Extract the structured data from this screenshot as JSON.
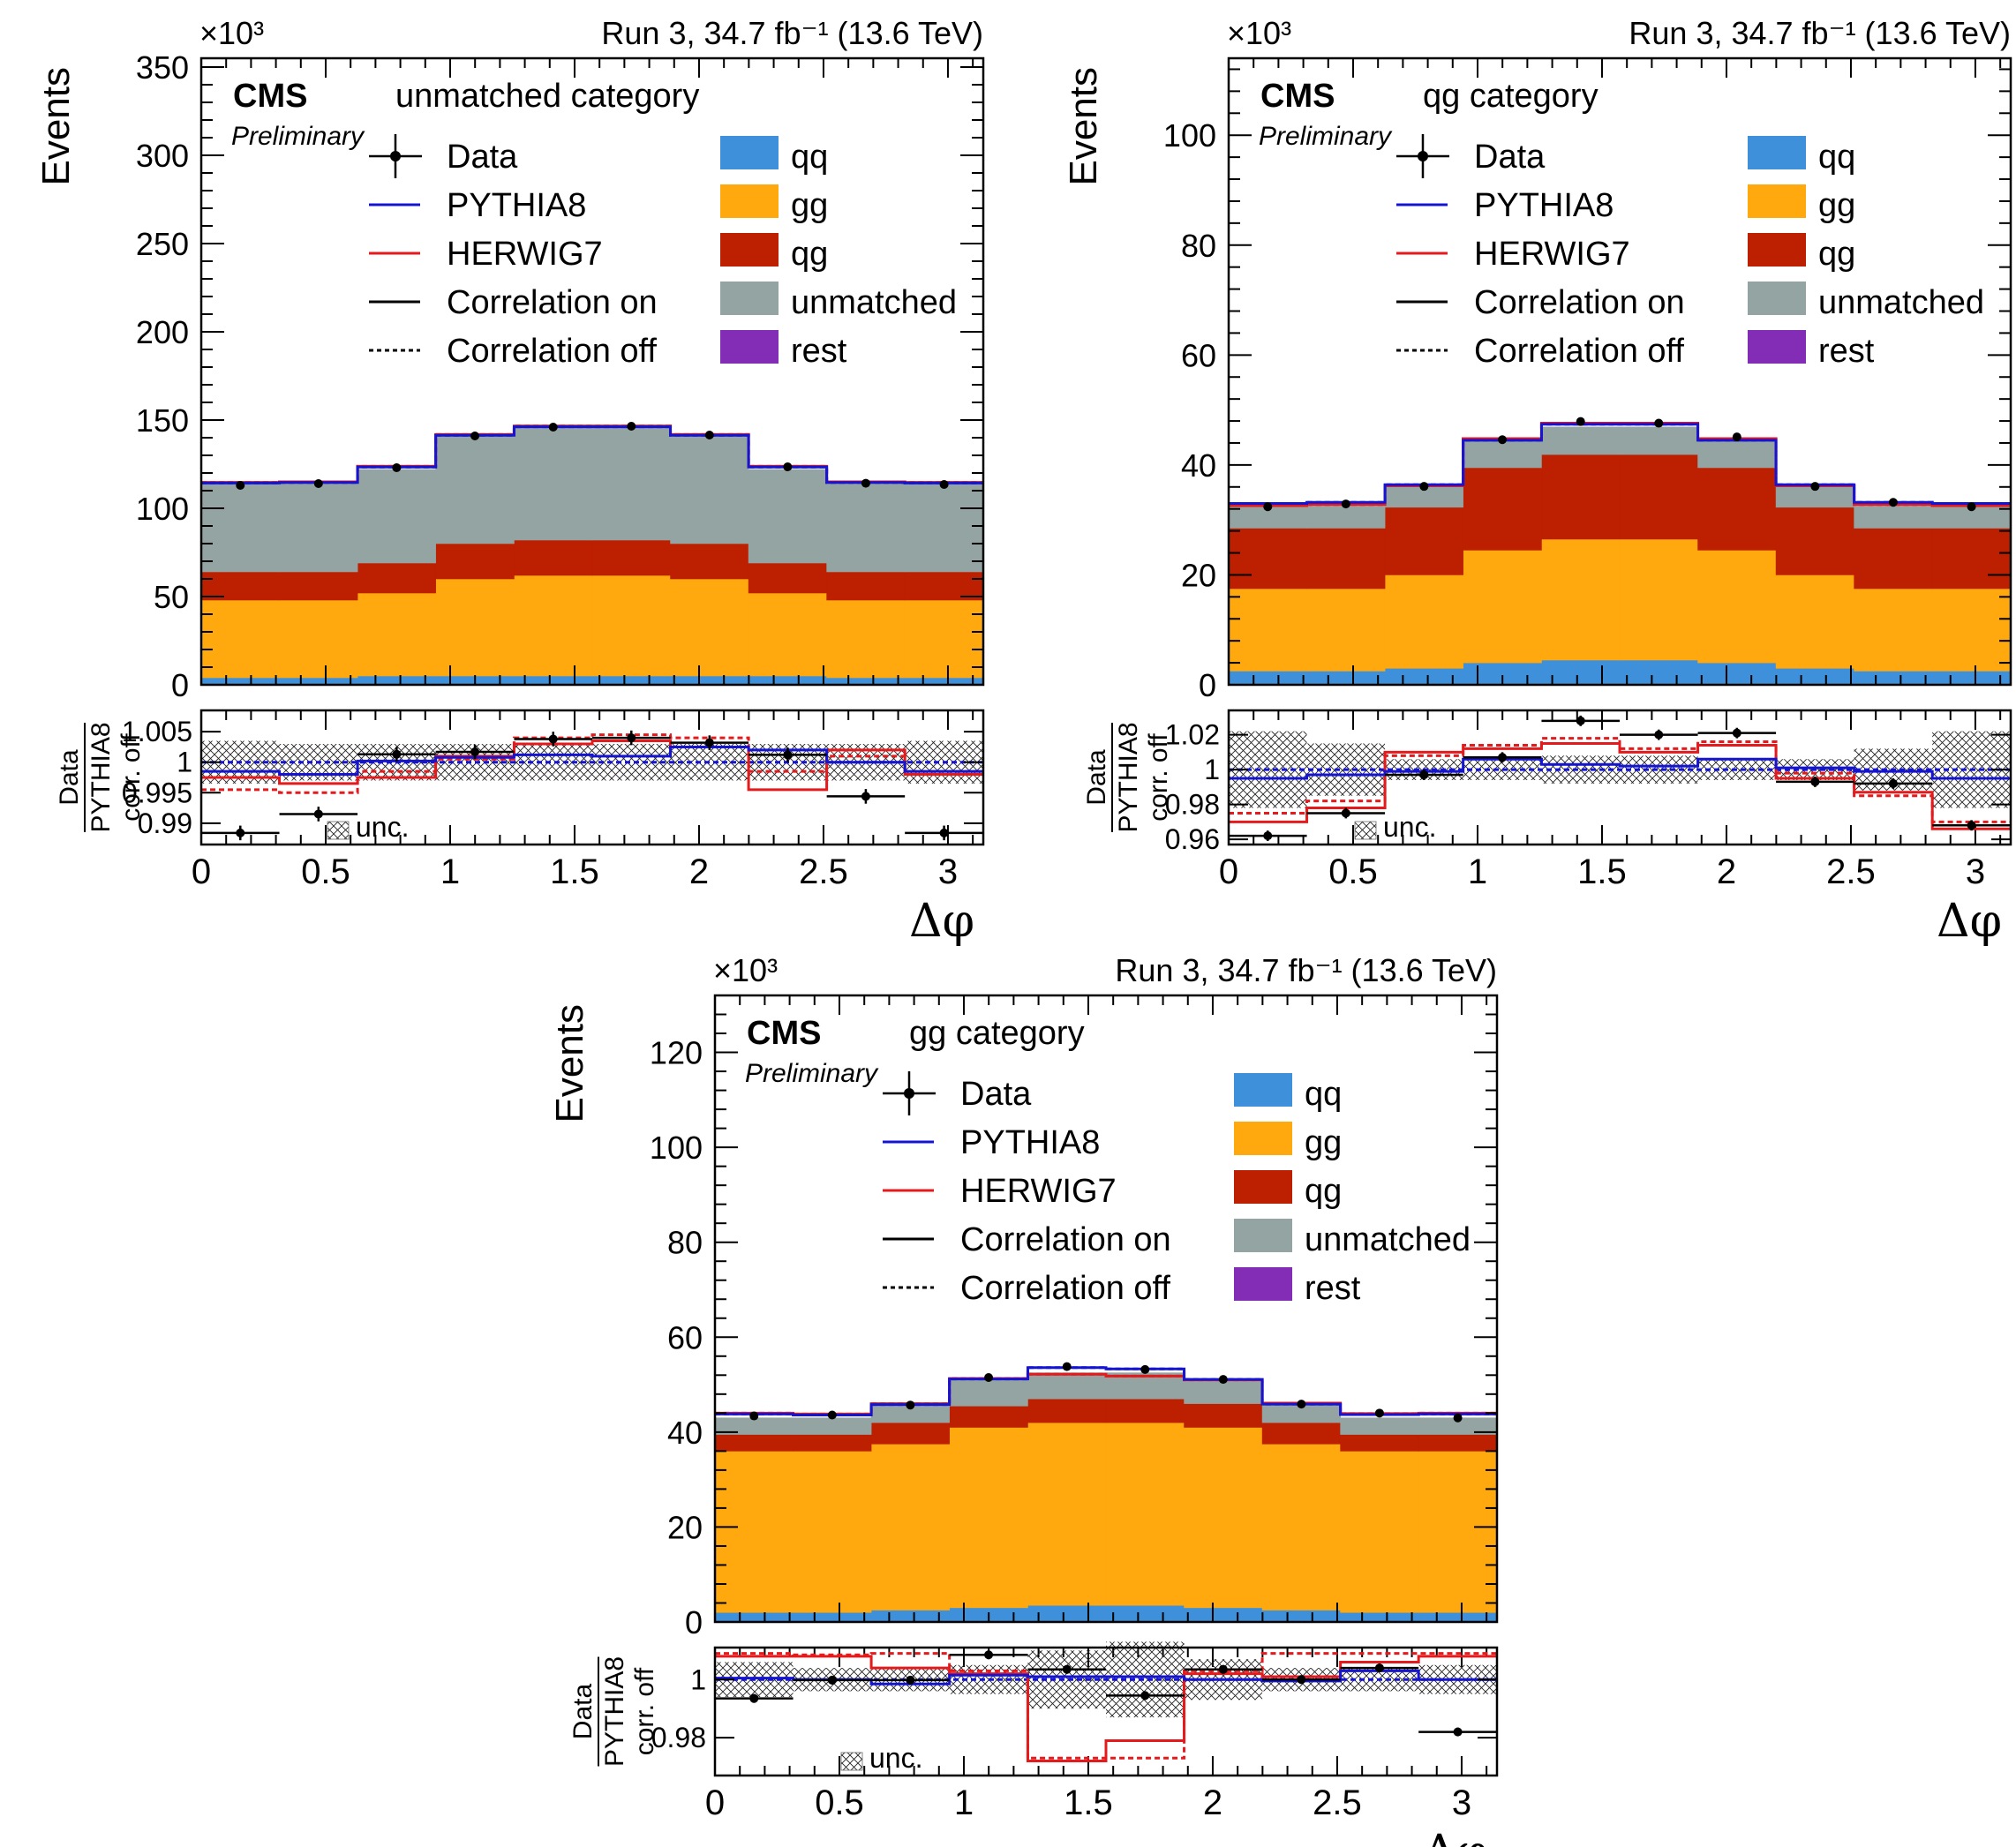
{
  "figure": {
    "lumi_label": "Run 3, 34.7 fb⁻¹ (13.6 TeV)",
    "cms_label": "CMS",
    "preliminary_label": "Preliminary",
    "exponent_label": "×10³",
    "ylabel_main": "Events",
    "ratio_ylabel_top": "Data",
    "ratio_ylabel_mid": "PYTHIA8",
    "ratio_ylabel_bottom": "corr. off",
    "xlabel": "Δφ",
    "unc_label": "unc.",
    "legend_left": [
      "Data",
      "PYTHIA8",
      "HERWIG7",
      "Correlation on",
      "Correlation off"
    ],
    "legend_right": [
      "qq",
      "gg",
      "qg",
      "unmatched",
      "rest"
    ],
    "colors": {
      "qq": "#3f90da",
      "gg": "#ffa90e",
      "qg": "#bd1f01",
      "unmatched": "#94a4a2",
      "rest": "#832db6",
      "pythia": "#1414d2",
      "herwig": "#e41a1c",
      "data": "#000000"
    }
  },
  "chart_data": [
    {
      "type": "bar",
      "panel": "top-left",
      "category_label": "unmatched category",
      "title": "Run 3, 34.7 fb⁻¹ (13.6 TeV)",
      "xlabel": "Δφ",
      "ylabel": "Events",
      "y_scale_note": "×10³",
      "x_bin_edges": [
        0,
        0.314,
        0.628,
        0.942,
        1.257,
        1.571,
        1.885,
        2.199,
        2.513,
        2.827,
        3.142
      ],
      "xlim": [
        0,
        3.142
      ],
      "xticks": [
        0,
        0.5,
        1,
        1.5,
        2,
        2.5,
        3
      ],
      "ylim": [
        0,
        355
      ],
      "yticks": [
        0,
        50,
        100,
        150,
        200,
        250,
        300,
        350
      ],
      "stack_order": [
        "qq",
        "gg",
        "qg",
        "unmatched"
      ],
      "series": [
        {
          "name": "qq",
          "values": [
            4,
            4,
            5,
            5,
            5,
            5,
            5,
            5,
            4,
            4
          ]
        },
        {
          "name": "gg",
          "values": [
            44,
            44,
            47,
            55,
            57,
            57,
            55,
            47,
            44,
            44
          ]
        },
        {
          "name": "qg",
          "values": [
            16,
            16,
            17,
            20,
            20,
            20,
            20,
            17,
            16,
            16
          ]
        },
        {
          "name": "unmatched",
          "values": [
            50,
            50,
            53,
            61,
            64,
            64,
            61,
            53,
            50,
            50
          ]
        }
      ],
      "pythia_total": [
        114.3,
        114.6,
        123.4,
        141.4,
        146.2,
        146.2,
        141.4,
        123.4,
        114.6,
        114.3
      ],
      "herwig_total": [
        114.7,
        115.0,
        123.8,
        141.8,
        146.6,
        146.6,
        141.8,
        123.8,
        115.0,
        114.7
      ],
      "data": [
        113,
        114,
        123,
        141,
        146,
        146.5,
        141.5,
        123.5,
        114.2,
        113.5
      ],
      "ratio_ylim": [
        0.9865,
        1.0085
      ],
      "ratio_yticks": [
        0.99,
        0.995,
        1,
        1.005
      ],
      "ratio_yticklabels": [
        "0.99",
        "0.995",
        "1",
        "1.005"
      ],
      "ratio_data": [
        0.9884,
        0.9915,
        1.0013,
        1.0017,
        1.0038,
        1.004,
        1.0032,
        1.0012,
        0.9944,
        0.9884
      ],
      "ratio_data_err": [
        0.0012,
        0.0012,
        0.0012,
        0.0012,
        0.0012,
        0.0012,
        0.0012,
        0.0012,
        0.0012,
        0.0012
      ],
      "ratio_unc": [
        0.0035,
        0.003,
        0.003,
        0.003,
        0.003,
        0.003,
        0.003,
        0.003,
        0.003,
        0.0035
      ],
      "ratio_pythia_on": [
        0.9985,
        0.998,
        1.0002,
        1.0008,
        1.0012,
        1.001,
        1.0025,
        1.002,
        1.0,
        0.9985
      ],
      "ratio_pythia_off": [
        1.0,
        1.0,
        1.0,
        1.0,
        1.0,
        1.0,
        1.0,
        1.0,
        1.0,
        1.0
      ],
      "ratio_herwig_on": [
        0.9975,
        0.9965,
        0.9975,
        1.001,
        1.003,
        1.0035,
        1.0025,
        0.9955,
        1.002,
        0.998
      ],
      "ratio_herwig_off": [
        0.9955,
        0.995,
        0.9985,
        1.0005,
        1.004,
        1.0045,
        1.004,
        0.9985,
        1.001,
        0.9985
      ]
    },
    {
      "type": "bar",
      "panel": "top-right",
      "category_label": "qg category",
      "title": "Run 3, 34.7 fb⁻¹ (13.6 TeV)",
      "xlabel": "Δφ",
      "ylabel": "Events",
      "y_scale_note": "×10³",
      "x_bin_edges": [
        0,
        0.314,
        0.628,
        0.942,
        1.257,
        1.571,
        1.885,
        2.199,
        2.513,
        2.827,
        3.142
      ],
      "xlim": [
        0,
        3.142
      ],
      "xticks": [
        0,
        0.5,
        1,
        1.5,
        2,
        2.5,
        3
      ],
      "ylim": [
        0,
        114
      ],
      "yticks": [
        0,
        20,
        40,
        60,
        80,
        100
      ],
      "stack_order": [
        "qq",
        "gg",
        "qg",
        "unmatched"
      ],
      "series": [
        {
          "name": "qq",
          "values": [
            2.5,
            2.5,
            3,
            4,
            4.5,
            4.5,
            4,
            3,
            2.5,
            2.5
          ]
        },
        {
          "name": "gg",
          "values": [
            15,
            15,
            17,
            20.5,
            22,
            22,
            20.5,
            17,
            15,
            15
          ]
        },
        {
          "name": "qg",
          "values": [
            11,
            11,
            12.3,
            15,
            15.4,
            15.4,
            15,
            12.3,
            11,
            11
          ]
        },
        {
          "name": "unmatched",
          "values": [
            4,
            4,
            4,
            5,
            5,
            5,
            5,
            4,
            4,
            4
          ]
        }
      ],
      "pythia_total": [
        33.0,
        33.2,
        36.4,
        44.5,
        47.4,
        47.4,
        44.5,
        36.4,
        33.2,
        33.0
      ],
      "herwig_total": [
        32.6,
        32.8,
        36.2,
        44.8,
        47.6,
        47.6,
        44.8,
        36.2,
        32.8,
        32.6
      ],
      "data": [
        32.4,
        32.9,
        36.1,
        44.6,
        47.9,
        47.6,
        45.1,
        36.1,
        33.2,
        32.4
      ],
      "ratio_ylim": [
        0.957,
        1.034
      ],
      "ratio_yticks": [
        0.96,
        0.98,
        1,
        1.02
      ],
      "ratio_yticklabels": [
        "0.96",
        "0.98",
        "1",
        "1.02"
      ],
      "ratio_data": [
        0.962,
        0.975,
        0.997,
        1.007,
        1.028,
        1.02,
        1.021,
        0.993,
        0.992,
        0.968
      ],
      "ratio_data_err": [
        0.003,
        0.003,
        0.003,
        0.003,
        0.003,
        0.003,
        0.003,
        0.003,
        0.003,
        0.003
      ],
      "ratio_unc": [
        0.022,
        0.015,
        0.006,
        0.006,
        0.008,
        0.008,
        0.006,
        0.006,
        0.012,
        0.022
      ],
      "ratio_pythia_on": [
        0.995,
        0.997,
        0.999,
        1.006,
        1.003,
        1.002,
        1.006,
        1.001,
        0.999,
        0.995
      ],
      "ratio_pythia_off": [
        1.0,
        1.0,
        1.0,
        1.0,
        1.0,
        1.0,
        1.0,
        1.0,
        1.0,
        1.0
      ],
      "ratio_herwig_on": [
        0.97,
        0.978,
        1.01,
        1.012,
        1.015,
        1.01,
        1.014,
        0.995,
        0.987,
        0.966
      ],
      "ratio_herwig_off": [
        0.975,
        0.982,
        1.008,
        1.014,
        1.018,
        1.012,
        1.016,
        0.998,
        0.985,
        0.97
      ]
    },
    {
      "type": "bar",
      "panel": "bottom-center",
      "category_label": "gg category",
      "title": "Run 3, 34.7 fb⁻¹ (13.6 TeV)",
      "xlabel": "Δφ",
      "ylabel": "Events",
      "y_scale_note": "×10³",
      "x_bin_edges": [
        0,
        0.314,
        0.628,
        0.942,
        1.257,
        1.571,
        1.885,
        2.199,
        2.513,
        2.827,
        3.142
      ],
      "xlim": [
        0,
        3.142
      ],
      "xticks": [
        0,
        0.5,
        1,
        1.5,
        2,
        2.5,
        3
      ],
      "ylim": [
        0,
        132
      ],
      "yticks": [
        0,
        20,
        40,
        60,
        80,
        100,
        120
      ],
      "stack_order": [
        "qq",
        "gg",
        "qg",
        "unmatched"
      ],
      "series": [
        {
          "name": "qq",
          "values": [
            2,
            2,
            2.5,
            3,
            3.5,
            3.5,
            3,
            2.5,
            2,
            2
          ]
        },
        {
          "name": "gg",
          "values": [
            34,
            34,
            35,
            38,
            38.5,
            38.5,
            38,
            35,
            34,
            34
          ]
        },
        {
          "name": "qg",
          "values": [
            3.5,
            3.5,
            4.5,
            4.5,
            5,
            5,
            5,
            4.5,
            3.5,
            3.5
          ]
        },
        {
          "name": "unmatched",
          "values": [
            3.5,
            3.5,
            4,
            5.5,
            5.5,
            5.5,
            5,
            4,
            3.5,
            3.5
          ]
        }
      ],
      "pythia_total": [
        43.8,
        43.6,
        45.8,
        51.2,
        53.6,
        53.3,
        51.1,
        45.9,
        43.7,
        43.8
      ],
      "herwig_total": [
        44.0,
        43.8,
        46.0,
        51.3,
        52.2,
        51.8,
        51.0,
        46.1,
        43.9,
        44.0
      ],
      "data": [
        43.4,
        43.6,
        45.7,
        51.5,
        53.8,
        53.2,
        51.1,
        45.9,
        44.0,
        43.0
      ],
      "ratio_ylim": [
        0.967,
        1.011
      ],
      "ratio_yticks": [
        0.98,
        1
      ],
      "ratio_yticklabels": [
        "0.98",
        "1"
      ],
      "ratio_data": [
        0.9935,
        0.9998,
        0.9998,
        1.0085,
        1.0035,
        0.9945,
        1.0035,
        1.0,
        1.004,
        0.982
      ],
      "ratio_data_err": [
        0.0015,
        0.0015,
        0.0015,
        0.0015,
        0.0015,
        0.0015,
        0.0015,
        0.0015,
        0.0015,
        0.0015
      ],
      "ratio_unc": [
        0.006,
        0.004,
        0.004,
        0.005,
        0.01,
        0.013,
        0.007,
        0.004,
        0.004,
        0.005
      ],
      "ratio_pythia_on": [
        1.0005,
        1.0,
        0.9985,
        1.0015,
        1.001,
        1.001,
        1.0,
        0.9995,
        1.003,
        1.0
      ],
      "ratio_pythia_off": [
        1.0,
        1.0,
        1.0,
        1.0,
        1.0,
        1.0,
        1.0,
        1.0,
        1.0,
        1.0
      ],
      "ratio_herwig_on": [
        1.008,
        1.008,
        1.004,
        1.002,
        0.972,
        0.979,
        1.002,
        1.001,
        1.006,
        1.008
      ],
      "ratio_herwig_off": [
        1.009,
        1.0085,
        1.009,
        1.003,
        0.973,
        0.973,
        1.003,
        1.009,
        1.009,
        1.009
      ]
    }
  ]
}
